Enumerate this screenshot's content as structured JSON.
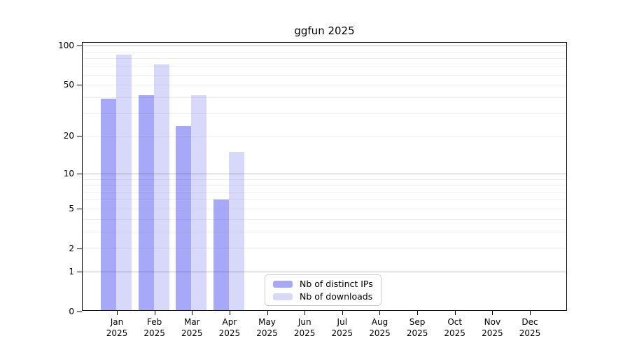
{
  "chart_data": {
    "type": "bar",
    "title": "ggfun 2025",
    "categories": [
      "Jan 2025",
      "Feb 2025",
      "Mar 2025",
      "Apr 2025",
      "May 2025",
      "Jun 2025",
      "Jul 2025",
      "Aug 2025",
      "Sep 2025",
      "Oct 2025",
      "Nov 2025",
      "Dec 2025"
    ],
    "series": [
      {
        "name": "Nb of distinct IPs",
        "color": "#a8a8f8",
        "values": [
          39,
          42,
          24,
          6,
          null,
          null,
          null,
          null,
          null,
          null,
          null,
          null
        ]
      },
      {
        "name": "Nb of downloads",
        "color": "#d8d8fa",
        "values": [
          86,
          72,
          42,
          15,
          null,
          null,
          null,
          null,
          null,
          null,
          null,
          null
        ]
      }
    ],
    "xlabel": "",
    "ylabel": "",
    "yscale": "log1p",
    "ylim": [
      0,
      106
    ],
    "y_ticks": [
      0,
      1,
      2,
      5,
      10,
      20,
      50,
      100
    ],
    "y_major_gridlines": [
      1,
      10,
      100
    ],
    "y_minor_gridlines": [
      2,
      3,
      4,
      5,
      6,
      7,
      8,
      9,
      20,
      30,
      40,
      50,
      60,
      70,
      80,
      90
    ],
    "grid": "horizontal",
    "legend_position": "inside-bottom-center",
    "colors": {
      "major_grid": "rgba(0,0,0,0.25)",
      "minor_grid": "rgba(0,0,0,0.06)",
      "frame": "#000000",
      "text": "#000000",
      "legend_border": "#cccccc"
    }
  }
}
